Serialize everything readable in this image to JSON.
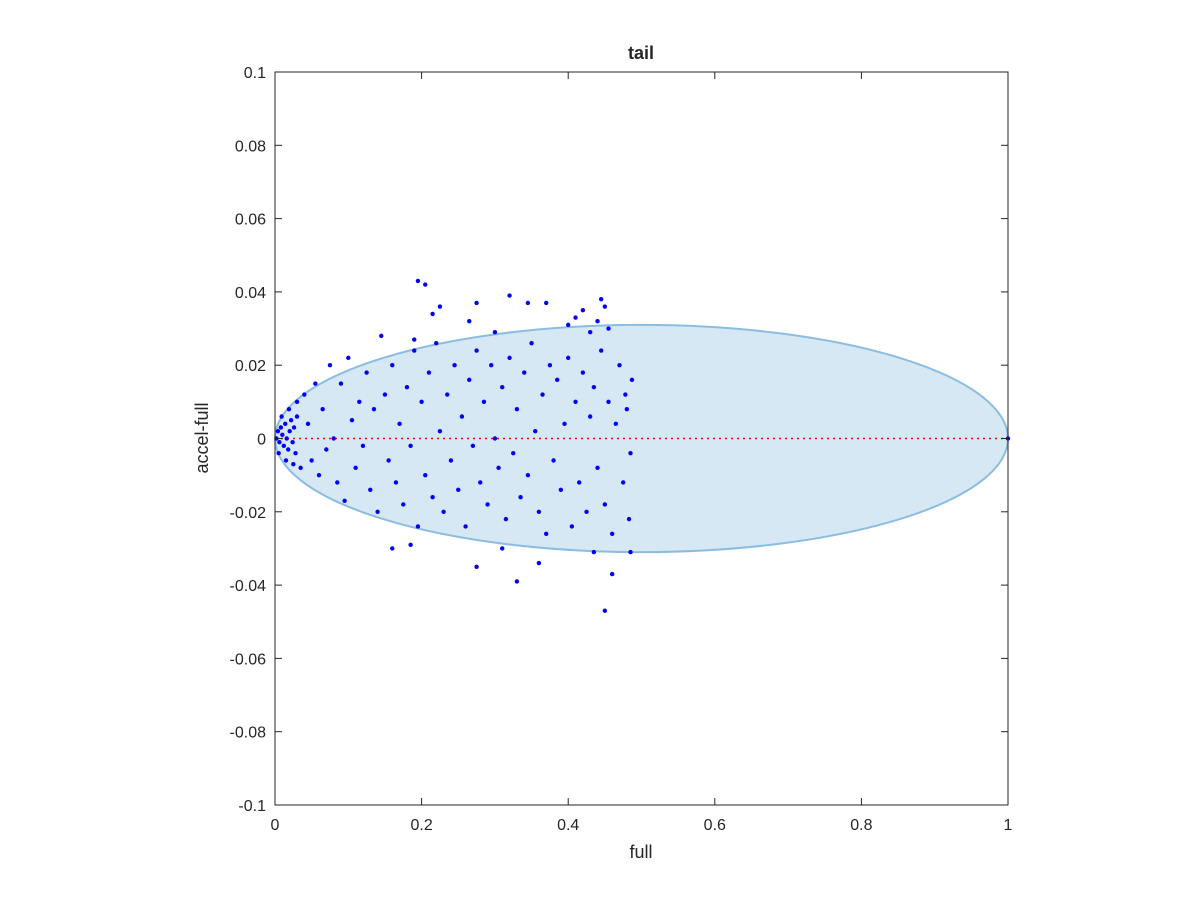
{
  "chart_data": {
    "type": "scatter",
    "title": "tail",
    "xlabel": "full",
    "ylabel": "accel-full",
    "xlim": [
      0,
      1
    ],
    "ylim": [
      -0.1,
      0.1
    ],
    "xticks": [
      0,
      0.2,
      0.4,
      0.6,
      0.8,
      1
    ],
    "xtick_labels": [
      "0",
      "0.2",
      "0.4",
      "0.6",
      "0.8",
      "1"
    ],
    "yticks": [
      -0.1,
      -0.08,
      -0.06,
      -0.04,
      -0.02,
      0,
      0.02,
      0.04,
      0.06,
      0.08,
      0.1
    ],
    "ytick_labels": [
      "-0.1",
      "-0.08",
      "-0.06",
      "-0.04",
      "-0.02",
      "0",
      "0.02",
      "0.04",
      "0.06",
      "0.08",
      "0.1"
    ],
    "grid": false,
    "colors": {
      "points": "#0000ff",
      "ellipse_fill": "#d6e8f4",
      "ellipse_edge": "#8bbde0",
      "reference_line": "#ff0000",
      "axes": "#262626"
    },
    "ellipse": {
      "center": [
        0.5,
        0
      ],
      "radius_x": 0.5,
      "radius_y": 0.031
    },
    "reference_line": {
      "y": 0,
      "x_range": [
        0,
        1
      ],
      "style": "dotted"
    },
    "series": [
      {
        "points": [
          [
            0.195,
            0.043
          ],
          [
            0.205,
            0.042
          ],
          [
            0.215,
            0.034
          ],
          [
            0.225,
            0.036
          ],
          [
            0.275,
            0.037
          ],
          [
            0.32,
            0.039
          ],
          [
            0.345,
            0.037
          ],
          [
            0.37,
            0.037
          ],
          [
            0.42,
            0.035
          ],
          [
            0.445,
            0.038
          ],
          [
            0.45,
            0.036
          ],
          [
            0.41,
            0.033
          ],
          [
            0.44,
            0.032
          ],
          [
            0.265,
            0.032
          ],
          [
            0.145,
            0.028
          ],
          [
            0.19,
            0.027
          ],
          [
            0.3,
            0.029
          ],
          [
            0.43,
            0.029
          ],
          [
            0.4,
            0.031
          ],
          [
            0.455,
            0.03
          ],
          [
            0.16,
            -0.03
          ],
          [
            0.185,
            -0.029
          ],
          [
            0.275,
            -0.035
          ],
          [
            0.33,
            -0.039
          ],
          [
            0.36,
            -0.034
          ],
          [
            0.435,
            -0.031
          ],
          [
            0.46,
            -0.037
          ],
          [
            0.45,
            -0.047
          ],
          [
            0.485,
            -0.031
          ],
          [
            0.31,
            -0.03
          ],
          [
            1.0,
            0.0
          ],
          [
            0.002,
            0.0
          ],
          [
            0.004,
            0.002
          ],
          [
            0.006,
            -0.001
          ],
          [
            0.008,
            0.003
          ],
          [
            0.01,
            0.001
          ],
          [
            0.012,
            -0.002
          ],
          [
            0.014,
            0.004
          ],
          [
            0.016,
            0.0
          ],
          [
            0.018,
            -0.003
          ],
          [
            0.02,
            0.002
          ],
          [
            0.022,
            0.005
          ],
          [
            0.024,
            -0.001
          ],
          [
            0.026,
            0.003
          ],
          [
            0.028,
            -0.004
          ],
          [
            0.03,
            0.006
          ],
          [
            0.005,
            -0.004
          ],
          [
            0.009,
            0.006
          ],
          [
            0.015,
            -0.006
          ],
          [
            0.019,
            0.008
          ],
          [
            0.025,
            -0.007
          ],
          [
            0.03,
            0.01
          ],
          [
            0.035,
            -0.008
          ],
          [
            0.04,
            0.012
          ],
          [
            0.045,
            0.004
          ],
          [
            0.05,
            -0.006
          ],
          [
            0.055,
            0.015
          ],
          [
            0.06,
            -0.01
          ],
          [
            0.065,
            0.008
          ],
          [
            0.07,
            -0.003
          ],
          [
            0.075,
            0.02
          ],
          [
            0.08,
            0.0
          ],
          [
            0.085,
            -0.012
          ],
          [
            0.09,
            0.015
          ],
          [
            0.095,
            -0.017
          ],
          [
            0.1,
            0.022
          ],
          [
            0.105,
            0.005
          ],
          [
            0.11,
            -0.008
          ],
          [
            0.115,
            0.01
          ],
          [
            0.12,
            -0.002
          ],
          [
            0.125,
            0.018
          ],
          [
            0.13,
            -0.014
          ],
          [
            0.135,
            0.008
          ],
          [
            0.14,
            -0.02
          ],
          [
            0.15,
            0.012
          ],
          [
            0.155,
            -0.006
          ],
          [
            0.16,
            0.02
          ],
          [
            0.165,
            -0.012
          ],
          [
            0.17,
            0.004
          ],
          [
            0.175,
            -0.018
          ],
          [
            0.18,
            0.014
          ],
          [
            0.185,
            -0.002
          ],
          [
            0.19,
            0.024
          ],
          [
            0.195,
            -0.024
          ],
          [
            0.2,
            0.01
          ],
          [
            0.205,
            -0.01
          ],
          [
            0.21,
            0.018
          ],
          [
            0.215,
            -0.016
          ],
          [
            0.22,
            0.026
          ],
          [
            0.225,
            0.002
          ],
          [
            0.23,
            -0.02
          ],
          [
            0.235,
            0.012
          ],
          [
            0.24,
            -0.006
          ],
          [
            0.245,
            0.02
          ],
          [
            0.25,
            -0.014
          ],
          [
            0.255,
            0.006
          ],
          [
            0.26,
            -0.024
          ],
          [
            0.265,
            0.016
          ],
          [
            0.27,
            -0.002
          ],
          [
            0.275,
            0.024
          ],
          [
            0.28,
            -0.012
          ],
          [
            0.285,
            0.01
          ],
          [
            0.29,
            -0.018
          ],
          [
            0.295,
            0.02
          ],
          [
            0.3,
            0.0
          ],
          [
            0.305,
            -0.008
          ],
          [
            0.31,
            0.014
          ],
          [
            0.315,
            -0.022
          ],
          [
            0.32,
            0.022
          ],
          [
            0.325,
            -0.004
          ],
          [
            0.33,
            0.008
          ],
          [
            0.335,
            -0.016
          ],
          [
            0.34,
            0.018
          ],
          [
            0.345,
            -0.01
          ],
          [
            0.35,
            0.026
          ],
          [
            0.355,
            0.002
          ],
          [
            0.36,
            -0.02
          ],
          [
            0.365,
            0.012
          ],
          [
            0.37,
            -0.026
          ],
          [
            0.375,
            0.02
          ],
          [
            0.38,
            -0.006
          ],
          [
            0.385,
            0.016
          ],
          [
            0.39,
            -0.014
          ],
          [
            0.395,
            0.004
          ],
          [
            0.4,
            0.022
          ],
          [
            0.405,
            -0.024
          ],
          [
            0.41,
            0.01
          ],
          [
            0.415,
            -0.012
          ],
          [
            0.42,
            0.018
          ],
          [
            0.425,
            -0.02
          ],
          [
            0.43,
            0.006
          ],
          [
            0.435,
            0.014
          ],
          [
            0.44,
            -0.008
          ],
          [
            0.445,
            0.024
          ],
          [
            0.45,
            -0.018
          ],
          [
            0.455,
            0.01
          ],
          [
            0.46,
            -0.026
          ],
          [
            0.465,
            0.004
          ],
          [
            0.47,
            0.02
          ],
          [
            0.475,
            -0.012
          ],
          [
            0.48,
            0.008
          ],
          [
            0.485,
            -0.004
          ],
          [
            0.487,
            0.016
          ],
          [
            0.483,
            -0.022
          ],
          [
            0.478,
            0.012
          ]
        ]
      }
    ]
  }
}
